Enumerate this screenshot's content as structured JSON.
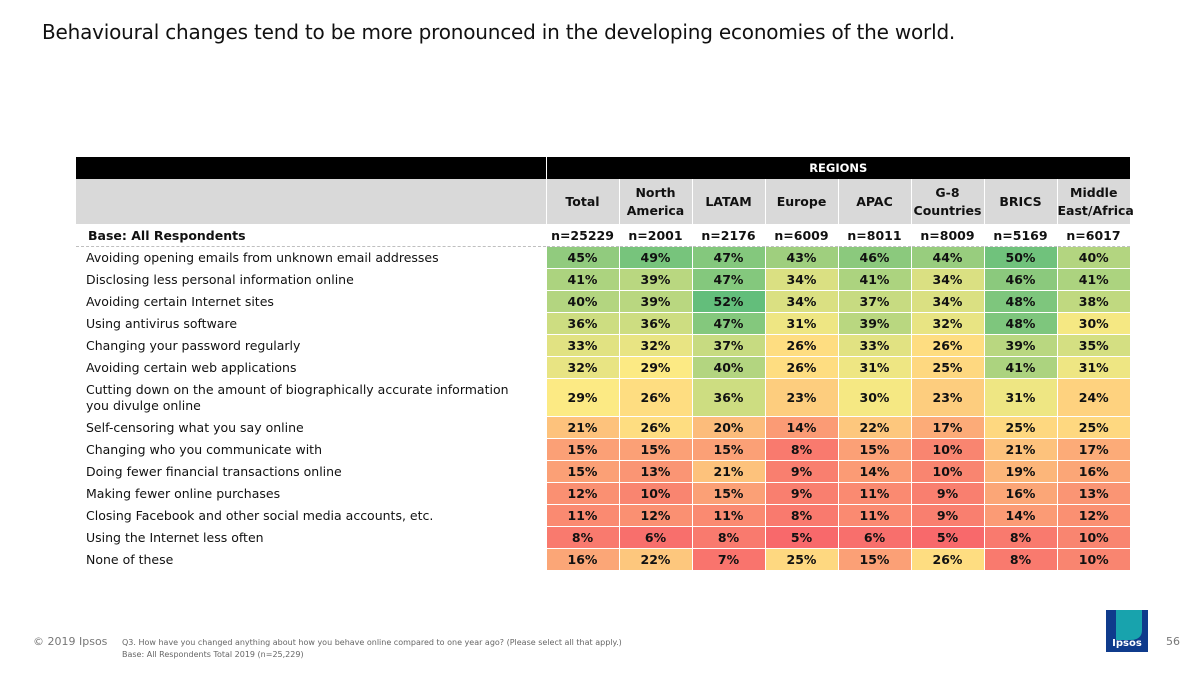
{
  "slide": {
    "title": "Behavioural changes tend to be more pronounced in the developing economies of the world."
  },
  "chart_data": {
    "type": "table",
    "group_header": "REGIONS",
    "columns": [
      "Total",
      "North America",
      "LATAM",
      "Europe",
      "APAC",
      "G-8 Countries",
      "BRICS",
      "Middle East/Africa"
    ],
    "base": {
      "label": "Base: All Respondents",
      "values": [
        "n=25229",
        "n=2001",
        "n=2176",
        "n=6009",
        "n=8011",
        "n=8009",
        "n=5169",
        "n=6017"
      ]
    },
    "rows": [
      {
        "label": "Avoiding opening emails from unknown email addresses",
        "values": [
          45,
          49,
          47,
          43,
          46,
          44,
          50,
          40
        ]
      },
      {
        "label": "Disclosing less personal information online",
        "values": [
          41,
          39,
          47,
          34,
          41,
          34,
          46,
          41
        ]
      },
      {
        "label": "Avoiding certain Internet sites",
        "values": [
          40,
          39,
          52,
          34,
          37,
          34,
          48,
          38
        ]
      },
      {
        "label": "Using antivirus software",
        "values": [
          36,
          36,
          47,
          31,
          39,
          32,
          48,
          30
        ]
      },
      {
        "label": "Changing your password regularly",
        "values": [
          33,
          32,
          37,
          26,
          33,
          26,
          39,
          35
        ]
      },
      {
        "label": "Avoiding certain web applications",
        "values": [
          32,
          29,
          40,
          26,
          31,
          25,
          41,
          31
        ]
      },
      {
        "label": "Cutting down on the amount of biographically accurate information you divulge online",
        "values": [
          29,
          26,
          36,
          23,
          30,
          23,
          31,
          24
        ]
      },
      {
        "label": "Self-censoring what you say online",
        "values": [
          21,
          26,
          20,
          14,
          22,
          17,
          25,
          25
        ]
      },
      {
        "label": "Changing who you communicate with",
        "values": [
          15,
          15,
          15,
          8,
          15,
          10,
          21,
          17
        ]
      },
      {
        "label": "Doing fewer financial transactions online",
        "values": [
          15,
          13,
          21,
          9,
          14,
          10,
          19,
          16
        ]
      },
      {
        "label": "Making fewer online purchases",
        "values": [
          12,
          10,
          15,
          9,
          11,
          9,
          16,
          13
        ]
      },
      {
        "label": "Closing Facebook and other social media accounts, etc.",
        "values": [
          11,
          12,
          11,
          8,
          11,
          9,
          14,
          12
        ]
      },
      {
        "label": "Using the Internet less often",
        "values": [
          8,
          6,
          8,
          5,
          6,
          5,
          8,
          10
        ]
      },
      {
        "label": "None of these",
        "values": [
          16,
          22,
          7,
          25,
          15,
          26,
          8,
          10
        ]
      }
    ],
    "value_suffix": "%",
    "color_scale": {
      "low": "#f8696b",
      "mid": "#ffeb84",
      "high": "#63be7b"
    }
  },
  "footer": {
    "copyright": "© 2019 Ipsos",
    "question": "Q3. How have you changed anything about how you behave online compared to one year ago? (Please select all that apply.)",
    "base_note": "Base: All Respondents Total  2019 (n=25,229)",
    "page_number": "56",
    "logo_text": "Ipsos"
  }
}
